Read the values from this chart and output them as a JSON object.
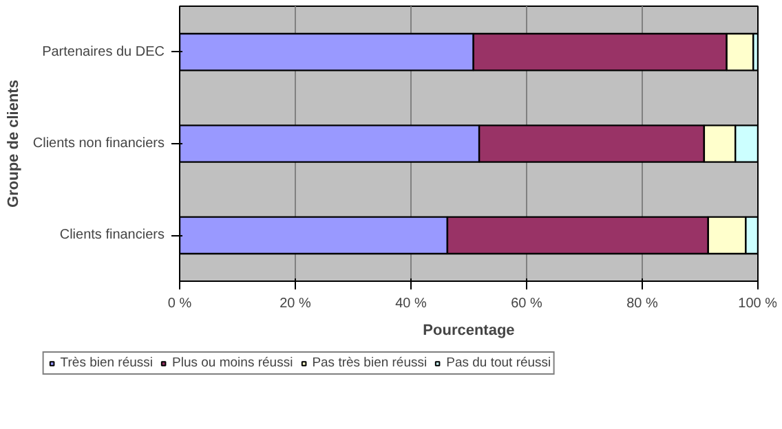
{
  "chart_data": {
    "type": "bar",
    "orientation": "horizontal",
    "stacked": true,
    "categories": [
      "Partenaires du DEC",
      "Clients non financiers",
      "Clients financiers"
    ],
    "series": [
      {
        "name": "Très bien réussi",
        "color": "#9999ff",
        "values": [
          50.8,
          51.8,
          46.3
        ]
      },
      {
        "name": "Plus ou moins réussi",
        "color": "#993366",
        "values": [
          43.8,
          38.9,
          45.1
        ]
      },
      {
        "name": "Pas très bien réussi",
        "color": "#ffffcc",
        "values": [
          4.6,
          5.4,
          6.5
        ]
      },
      {
        "name": "Pas du tout réussi",
        "color": "#ccffff",
        "values": [
          0.8,
          3.9,
          2.1
        ]
      }
    ],
    "xlim": [
      0,
      100
    ],
    "xticks": [
      {
        "value": 0,
        "label": "0 %"
      },
      {
        "value": 20,
        "label": "20 %"
      },
      {
        "value": 40,
        "label": "40 %"
      },
      {
        "value": 60,
        "label": "60 %"
      },
      {
        "value": 80,
        "label": "80 %"
      },
      {
        "value": 100,
        "label": "100 %"
      }
    ],
    "xlabel": "Pourcentage",
    "ylabel": "Groupe de clients",
    "grid": "x",
    "legend": "bottom"
  }
}
